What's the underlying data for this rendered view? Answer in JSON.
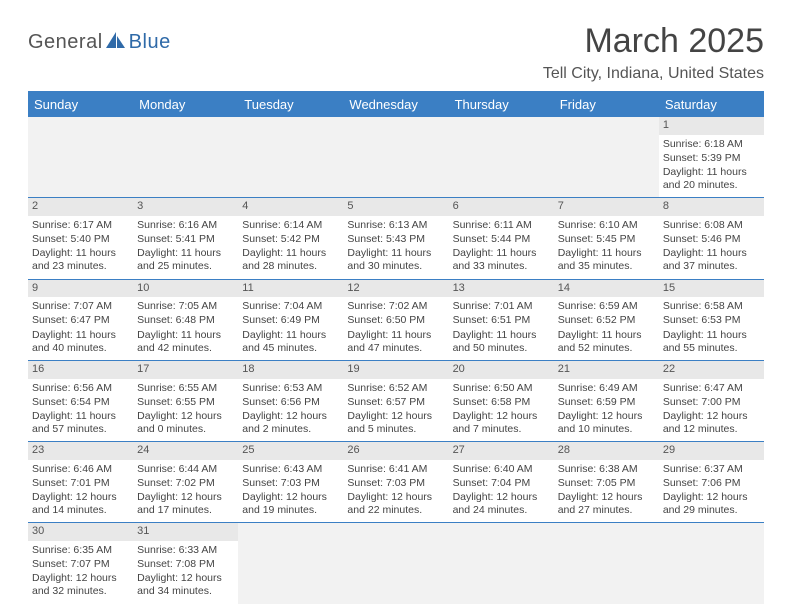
{
  "logo": {
    "text1": "General",
    "text2": "Blue",
    "shape_color": "#2f6aa8"
  },
  "title": "March 2025",
  "location": "Tell City, Indiana, United States",
  "colors": {
    "header_bg": "#3b7fc4",
    "header_text": "#ffffff",
    "daynum_bg": "#e8e8e8",
    "border": "#3b7fc4",
    "body_text": "#444444"
  },
  "typography": {
    "title_fontsize": 34,
    "location_fontsize": 16,
    "header_fontsize": 13,
    "cell_fontsize": 10.5
  },
  "day_names": [
    "Sunday",
    "Monday",
    "Tuesday",
    "Wednesday",
    "Thursday",
    "Friday",
    "Saturday"
  ],
  "weeks": [
    [
      null,
      null,
      null,
      null,
      null,
      null,
      {
        "d": "1",
        "sunrise": "6:18 AM",
        "sunset": "5:39 PM",
        "daylight": "11 hours and 20 minutes."
      }
    ],
    [
      {
        "d": "2",
        "sunrise": "6:17 AM",
        "sunset": "5:40 PM",
        "daylight": "11 hours and 23 minutes."
      },
      {
        "d": "3",
        "sunrise": "6:16 AM",
        "sunset": "5:41 PM",
        "daylight": "11 hours and 25 minutes."
      },
      {
        "d": "4",
        "sunrise": "6:14 AM",
        "sunset": "5:42 PM",
        "daylight": "11 hours and 28 minutes."
      },
      {
        "d": "5",
        "sunrise": "6:13 AM",
        "sunset": "5:43 PM",
        "daylight": "11 hours and 30 minutes."
      },
      {
        "d": "6",
        "sunrise": "6:11 AM",
        "sunset": "5:44 PM",
        "daylight": "11 hours and 33 minutes."
      },
      {
        "d": "7",
        "sunrise": "6:10 AM",
        "sunset": "5:45 PM",
        "daylight": "11 hours and 35 minutes."
      },
      {
        "d": "8",
        "sunrise": "6:08 AM",
        "sunset": "5:46 PM",
        "daylight": "11 hours and 37 minutes."
      }
    ],
    [
      {
        "d": "9",
        "sunrise": "7:07 AM",
        "sunset": "6:47 PM",
        "daylight": "11 hours and 40 minutes."
      },
      {
        "d": "10",
        "sunrise": "7:05 AM",
        "sunset": "6:48 PM",
        "daylight": "11 hours and 42 minutes."
      },
      {
        "d": "11",
        "sunrise": "7:04 AM",
        "sunset": "6:49 PM",
        "daylight": "11 hours and 45 minutes."
      },
      {
        "d": "12",
        "sunrise": "7:02 AM",
        "sunset": "6:50 PM",
        "daylight": "11 hours and 47 minutes."
      },
      {
        "d": "13",
        "sunrise": "7:01 AM",
        "sunset": "6:51 PM",
        "daylight": "11 hours and 50 minutes."
      },
      {
        "d": "14",
        "sunrise": "6:59 AM",
        "sunset": "6:52 PM",
        "daylight": "11 hours and 52 minutes."
      },
      {
        "d": "15",
        "sunrise": "6:58 AM",
        "sunset": "6:53 PM",
        "daylight": "11 hours and 55 minutes."
      }
    ],
    [
      {
        "d": "16",
        "sunrise": "6:56 AM",
        "sunset": "6:54 PM",
        "daylight": "11 hours and 57 minutes."
      },
      {
        "d": "17",
        "sunrise": "6:55 AM",
        "sunset": "6:55 PM",
        "daylight": "12 hours and 0 minutes."
      },
      {
        "d": "18",
        "sunrise": "6:53 AM",
        "sunset": "6:56 PM",
        "daylight": "12 hours and 2 minutes."
      },
      {
        "d": "19",
        "sunrise": "6:52 AM",
        "sunset": "6:57 PM",
        "daylight": "12 hours and 5 minutes."
      },
      {
        "d": "20",
        "sunrise": "6:50 AM",
        "sunset": "6:58 PM",
        "daylight": "12 hours and 7 minutes."
      },
      {
        "d": "21",
        "sunrise": "6:49 AM",
        "sunset": "6:59 PM",
        "daylight": "12 hours and 10 minutes."
      },
      {
        "d": "22",
        "sunrise": "6:47 AM",
        "sunset": "7:00 PM",
        "daylight": "12 hours and 12 minutes."
      }
    ],
    [
      {
        "d": "23",
        "sunrise": "6:46 AM",
        "sunset": "7:01 PM",
        "daylight": "12 hours and 14 minutes."
      },
      {
        "d": "24",
        "sunrise": "6:44 AM",
        "sunset": "7:02 PM",
        "daylight": "12 hours and 17 minutes."
      },
      {
        "d": "25",
        "sunrise": "6:43 AM",
        "sunset": "7:03 PM",
        "daylight": "12 hours and 19 minutes."
      },
      {
        "d": "26",
        "sunrise": "6:41 AM",
        "sunset": "7:03 PM",
        "daylight": "12 hours and 22 minutes."
      },
      {
        "d": "27",
        "sunrise": "6:40 AM",
        "sunset": "7:04 PM",
        "daylight": "12 hours and 24 minutes."
      },
      {
        "d": "28",
        "sunrise": "6:38 AM",
        "sunset": "7:05 PM",
        "daylight": "12 hours and 27 minutes."
      },
      {
        "d": "29",
        "sunrise": "6:37 AM",
        "sunset": "7:06 PM",
        "daylight": "12 hours and 29 minutes."
      }
    ],
    [
      {
        "d": "30",
        "sunrise": "6:35 AM",
        "sunset": "7:07 PM",
        "daylight": "12 hours and 32 minutes."
      },
      {
        "d": "31",
        "sunrise": "6:33 AM",
        "sunset": "7:08 PM",
        "daylight": "12 hours and 34 minutes."
      },
      null,
      null,
      null,
      null,
      null
    ]
  ],
  "labels": {
    "sunrise": "Sunrise:",
    "sunset": "Sunset:",
    "daylight": "Daylight:"
  }
}
